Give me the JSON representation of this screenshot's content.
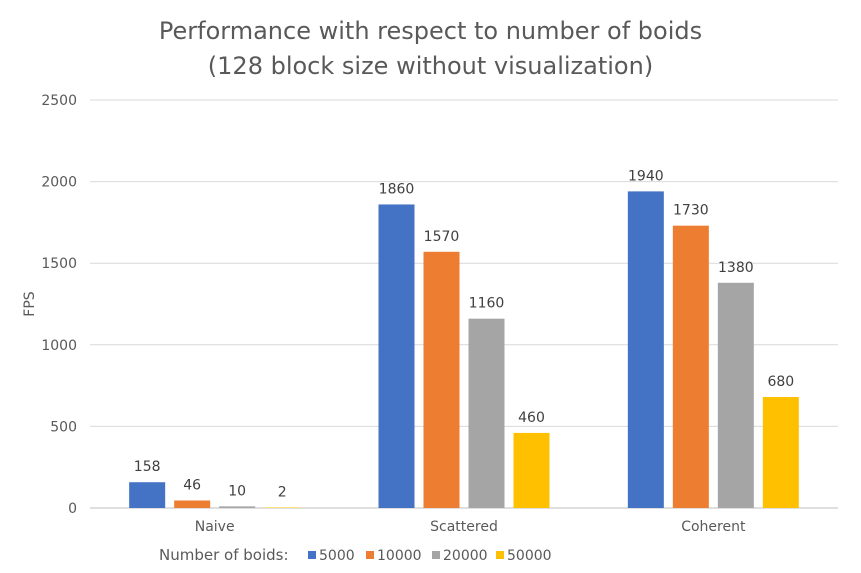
{
  "chart_data": {
    "type": "bar",
    "title": "Performance with respect to number of boids",
    "subtitle": "(128 block size without visualization)",
    "xlabel": "",
    "ylabel": "FPS",
    "ylim": [
      0,
      2500
    ],
    "yticks": [
      0,
      500,
      1000,
      1500,
      2000,
      2500
    ],
    "grid": true,
    "legend_position": "bottom",
    "legend_title": "Number of boids:",
    "categories": [
      "Naive",
      "Scattered",
      "Coherent"
    ],
    "series": [
      {
        "name": "5000",
        "color": "#4472C4",
        "values": [
          158,
          1860,
          1940
        ]
      },
      {
        "name": "10000",
        "color": "#ED7D31",
        "values": [
          46,
          1570,
          1730
        ]
      },
      {
        "name": "20000",
        "color": "#A5A5A5",
        "values": [
          10,
          1160,
          1380
        ]
      },
      {
        "name": "50000",
        "color": "#FFC000",
        "values": [
          2,
          460,
          680
        ]
      }
    ]
  }
}
